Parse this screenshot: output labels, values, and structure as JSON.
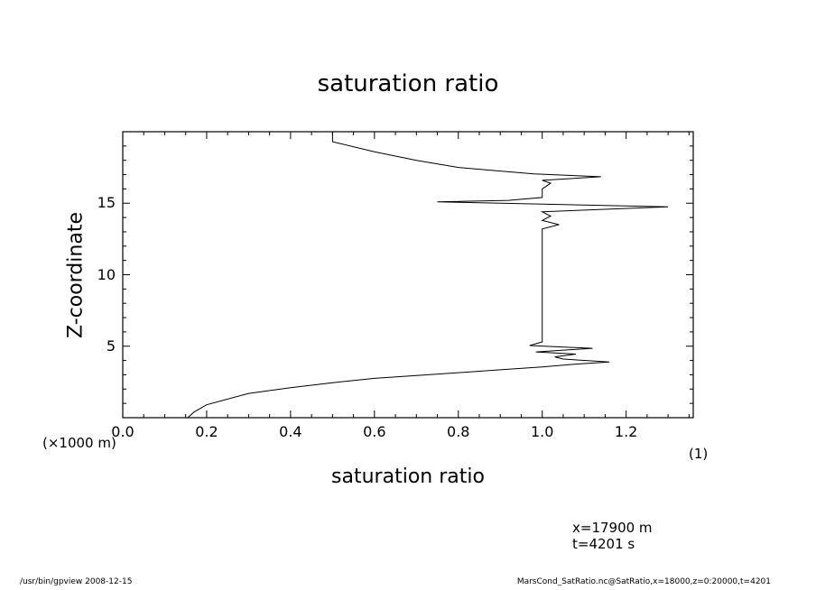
{
  "chart_data": {
    "type": "line",
    "title": "saturation ratio",
    "xlabel": "saturation ratio",
    "ylabel": "Z-coordinate",
    "x_unit": "(1)",
    "y_unit": "(×1000 m)",
    "xlim": [
      0.0,
      1.36
    ],
    "ylim": [
      0,
      20
    ],
    "x_ticks": [
      "0.0",
      "0.2",
      "0.4",
      "0.6",
      "0.8",
      "1.0",
      "1.2"
    ],
    "y_ticks": [
      "5",
      "10",
      "15"
    ],
    "grid": false,
    "series": [
      {
        "points": [
          [
            0.155,
            0.0
          ],
          [
            0.17,
            0.4
          ],
          [
            0.2,
            0.9
          ],
          [
            0.25,
            1.3
          ],
          [
            0.3,
            1.7
          ],
          [
            0.4,
            2.1
          ],
          [
            0.5,
            2.45
          ],
          [
            0.6,
            2.75
          ],
          [
            0.7,
            2.95
          ],
          [
            0.8,
            3.15
          ],
          [
            0.9,
            3.35
          ],
          [
            1.0,
            3.55
          ],
          [
            1.08,
            3.75
          ],
          [
            1.16,
            3.9
          ],
          [
            1.05,
            4.1
          ],
          [
            1.03,
            4.25
          ],
          [
            1.08,
            4.45
          ],
          [
            0.985,
            4.6
          ],
          [
            1.12,
            4.85
          ],
          [
            0.97,
            5.05
          ],
          [
            1.0,
            5.3
          ],
          [
            1.0,
            7.0
          ],
          [
            1.0,
            9.0
          ],
          [
            1.0,
            11.0
          ],
          [
            1.0,
            13.2
          ],
          [
            1.04,
            13.5
          ],
          [
            1.0,
            13.8
          ],
          [
            1.02,
            14.1
          ],
          [
            1.0,
            14.4
          ],
          [
            1.3,
            14.75
          ],
          [
            0.75,
            15.1
          ],
          [
            0.92,
            15.2
          ],
          [
            1.0,
            15.4
          ],
          [
            1.0,
            16.0
          ],
          [
            1.02,
            16.4
          ],
          [
            1.0,
            16.6
          ],
          [
            1.14,
            16.85
          ],
          [
            0.98,
            17.05
          ],
          [
            0.9,
            17.25
          ],
          [
            0.8,
            17.5
          ],
          [
            0.7,
            18.0
          ],
          [
            0.6,
            18.6
          ],
          [
            0.5,
            19.3
          ],
          [
            0.5,
            20.0
          ]
        ]
      }
    ]
  },
  "annotations": {
    "xpos": "x=17900 m",
    "time": "t=4201 s"
  },
  "footer": {
    "left": "/usr/bin/gpview   2008-12-15",
    "right": "MarsCond_SatRatio.nc@SatRatio,x=18000,z=0:20000,t=4201"
  }
}
